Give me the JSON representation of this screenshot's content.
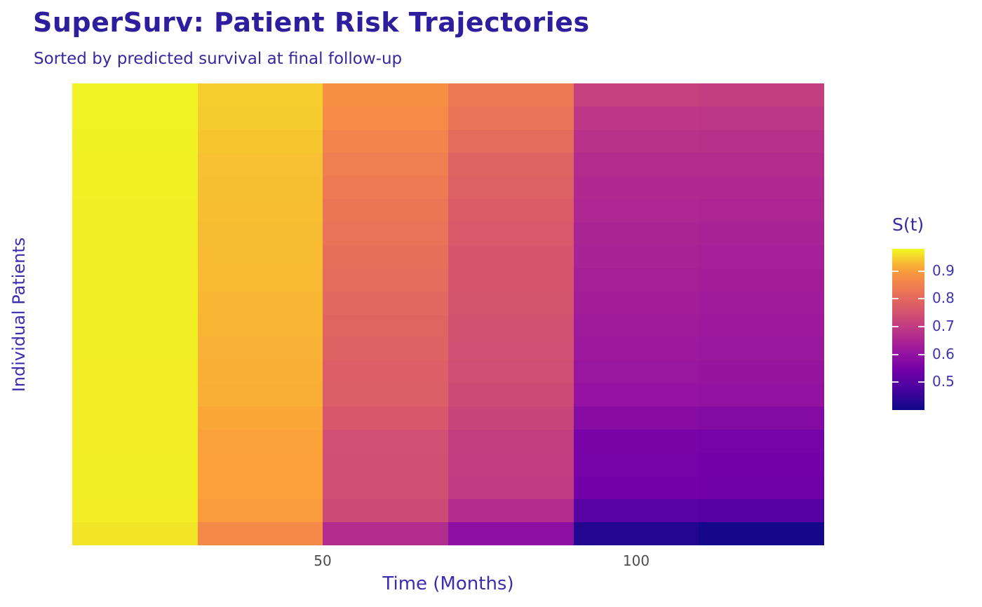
{
  "header": {
    "title": "SuperSurv: Patient Risk Trajectories",
    "subtitle": "Sorted by predicted survival at final follow-up"
  },
  "axes": {
    "x_label": "Time (Months)",
    "y_label": "Individual Patients",
    "x_ticks": [
      "50",
      "100"
    ]
  },
  "legend": {
    "title": "S(t)",
    "tick_labels": [
      "0.9",
      "0.8",
      "0.7",
      "0.6",
      "0.5"
    ]
  },
  "colors": {
    "title_text": "#2d1e9e",
    "subtitle_text": "#36289d",
    "axis_title_text": "#3a2daf",
    "tick_label_text": "#4d4d4d",
    "legend_text": "#3c35ad",
    "background": "#ffffff"
  },
  "chart_data": {
    "type": "heatmap",
    "title": "SuperSurv: Patient Risk Trajectories",
    "subtitle": "Sorted by predicted survival at final follow-up",
    "xlabel": "Time (Months)",
    "ylabel": "Individual Patients",
    "x_bin_centers_months": [
      20,
      40,
      60,
      80,
      100,
      120
    ],
    "x_range_months": [
      10,
      130
    ],
    "x_axis_ticks": [
      50,
      100
    ],
    "n_patients": 20,
    "row_order": "sorted by predicted survival at final follow-up, best (top) to worst (bottom)",
    "colormap": "plasma",
    "color_domain": [
      0.4,
      0.98
    ],
    "legend": {
      "title": "S(t)",
      "ticks": [
        0.9,
        0.8,
        0.7,
        0.6,
        0.5
      ]
    },
    "values_rows_top_to_bottom": [
      [
        0.975,
        0.945,
        0.88,
        0.835,
        0.712,
        0.705
      ],
      [
        0.975,
        0.943,
        0.87,
        0.824,
        0.69,
        0.688
      ],
      [
        0.974,
        0.939,
        0.857,
        0.806,
        0.678,
        0.676
      ],
      [
        0.973,
        0.935,
        0.845,
        0.788,
        0.666,
        0.665
      ],
      [
        0.973,
        0.934,
        0.837,
        0.781,
        0.66,
        0.658
      ],
      [
        0.972,
        0.933,
        0.829,
        0.774,
        0.655,
        0.651
      ],
      [
        0.972,
        0.932,
        0.821,
        0.767,
        0.649,
        0.644
      ],
      [
        0.972,
        0.931,
        0.814,
        0.76,
        0.644,
        0.637
      ],
      [
        0.972,
        0.929,
        0.806,
        0.757,
        0.638,
        0.632
      ],
      [
        0.971,
        0.927,
        0.799,
        0.753,
        0.632,
        0.627
      ],
      [
        0.971,
        0.925,
        0.791,
        0.75,
        0.626,
        0.621
      ],
      [
        0.971,
        0.923,
        0.784,
        0.747,
        0.62,
        0.616
      ],
      [
        0.97,
        0.921,
        0.78,
        0.74,
        0.613,
        0.609
      ],
      [
        0.97,
        0.92,
        0.777,
        0.733,
        0.605,
        0.602
      ],
      [
        0.97,
        0.914,
        0.762,
        0.72,
        0.58,
        0.576
      ],
      [
        0.97,
        0.909,
        0.747,
        0.706,
        0.555,
        0.55
      ],
      [
        0.971,
        0.908,
        0.745,
        0.703,
        0.55,
        0.545
      ],
      [
        0.972,
        0.908,
        0.744,
        0.7,
        0.545,
        0.54
      ],
      [
        0.97,
        0.9,
        0.733,
        0.666,
        0.504,
        0.499
      ],
      [
        0.964,
        0.867,
        0.666,
        0.59,
        0.428,
        0.409
      ]
    ]
  }
}
